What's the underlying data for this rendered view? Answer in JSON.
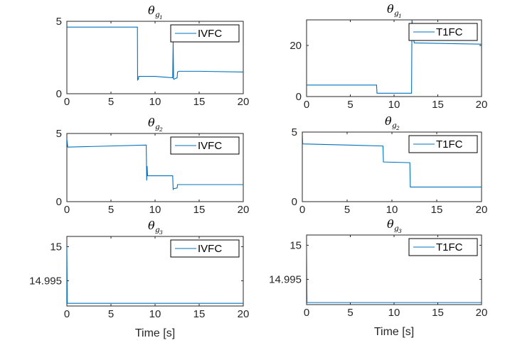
{
  "colors": {
    "series": "#0072bd",
    "axis": "#262626",
    "box": "#000000"
  },
  "chart_data": [
    {
      "type": "line",
      "title": {
        "base": "θ",
        "sub": "g",
        "subsub": "1"
      },
      "legend": "IVFC",
      "xlabel": "",
      "xlim": [
        0,
        20
      ],
      "ylim": [
        0,
        5
      ],
      "xticks": [
        0,
        5,
        10,
        15,
        20
      ],
      "yticks": [
        0,
        5
      ],
      "ytick_labels": [
        "0",
        "5"
      ],
      "x": [
        0,
        8,
        8.02,
        8.1,
        8.15,
        9,
        10,
        11,
        12,
        12.05,
        12.1,
        12.15,
        12.3,
        12.5,
        12.55,
        12.7,
        15,
        20
      ],
      "y": [
        4.6,
        4.6,
        0.95,
        1.0,
        1.2,
        1.2,
        1.2,
        1.15,
        1.1,
        3.6,
        1.0,
        1.0,
        1.05,
        1.1,
        1.5,
        1.55,
        1.55,
        1.5
      ]
    },
    {
      "type": "line",
      "title": {
        "base": "θ",
        "sub": "g",
        "subsub": "1"
      },
      "legend": "T1FC",
      "xlabel": "",
      "xlim": [
        0,
        20
      ],
      "ylim": [
        0,
        30
      ],
      "xticks": [
        0,
        5,
        10,
        15,
        20
      ],
      "yticks": [
        0,
        20
      ],
      "ytick_labels": [
        "0",
        "20"
      ],
      "x": [
        0,
        8,
        8.05,
        12,
        12.05,
        12.3,
        20
      ],
      "y": [
        4.5,
        4.5,
        1.3,
        1.3,
        30,
        21,
        20.5
      ]
    },
    {
      "type": "line",
      "title": {
        "base": "θ",
        "sub": "g",
        "subsub": "2"
      },
      "legend": "IVFC",
      "xlabel": "",
      "xlim": [
        0,
        20
      ],
      "ylim": [
        0,
        5
      ],
      "xticks": [
        0,
        5,
        10,
        15,
        20
      ],
      "yticks": [
        0,
        5
      ],
      "ytick_labels": [
        "0",
        "5"
      ],
      "x": [
        0,
        0.1,
        9,
        9.05,
        9.1,
        9.15,
        9.3,
        12,
        12.05,
        12.1,
        12.5,
        12.55,
        12.7,
        15,
        20
      ],
      "y": [
        4.6,
        4.0,
        4.15,
        1.55,
        2.6,
        1.9,
        1.9,
        1.9,
        0.9,
        0.95,
        1.0,
        1.25,
        1.25,
        1.25,
        1.25
      ]
    },
    {
      "type": "line",
      "title": {
        "base": "θ",
        "sub": "g",
        "subsub": "2"
      },
      "legend": "T1FC",
      "xlabel": "",
      "xlim": [
        0,
        20
      ],
      "ylim": [
        0,
        5
      ],
      "xticks": [
        0,
        5,
        10,
        15,
        20
      ],
      "yticks": [
        0,
        5
      ],
      "ytick_labels": [
        "0",
        "5"
      ],
      "x": [
        0,
        0.05,
        9,
        9.05,
        12,
        12.05,
        20
      ],
      "y": [
        5,
        4.15,
        4.0,
        2.85,
        2.8,
        1.05,
        1.05
      ]
    },
    {
      "type": "line",
      "title": {
        "base": "θ",
        "sub": "g",
        "subsub": "3"
      },
      "legend": "IVFC",
      "xlabel": "Time [s]",
      "xlim": [
        0,
        20
      ],
      "ylim": [
        14.9913,
        15.0015
      ],
      "xticks": [
        0,
        5,
        10,
        15,
        20
      ],
      "yticks": [
        14.995,
        15
      ],
      "ytick_labels": [
        "14.995",
        "15"
      ],
      "x": [
        0,
        0.05,
        0.1,
        20
      ],
      "y": [
        15.0,
        14.9917,
        14.9917,
        14.9917
      ]
    },
    {
      "type": "line",
      "title": {
        "base": "θ",
        "sub": "g",
        "subsub": "3"
      },
      "legend": "T1FC",
      "xlabel": "Time [s]",
      "xlim": [
        0,
        20
      ],
      "ylim": [
        14.9913,
        15.0015
      ],
      "xticks": [
        0,
        5,
        10,
        15,
        20
      ],
      "yticks": [
        14.995,
        15
      ],
      "ytick_labels": [
        "14.995",
        "15"
      ],
      "x": [
        0,
        0.05,
        0.1,
        20
      ],
      "y": [
        15.0,
        14.9916,
        14.9916,
        14.9916
      ]
    }
  ]
}
